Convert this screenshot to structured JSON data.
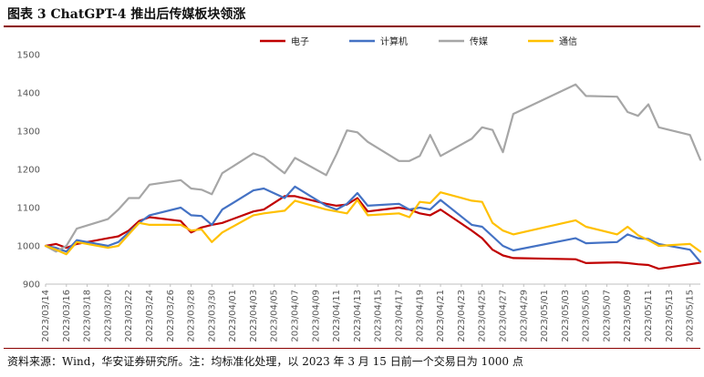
{
  "figure": {
    "title": "图表 3 ChatGPT-4 推出后传媒板块领涨",
    "source": "资料来源：Wind，华安证券研究所。注：均标准化处理，以 2023 年 3 月 15 日前一个交易日为 1000 点"
  },
  "chart_data": {
    "type": "line",
    "title": "",
    "xlabel": "",
    "ylabel": "",
    "ylim": [
      900,
      1500
    ],
    "yticks": [
      900,
      1000,
      1100,
      1200,
      1300,
      1400,
      1500
    ],
    "grid": false,
    "legend": "top",
    "x_tick_labels": [
      "2023/03/14",
      "2023/03/16",
      "2023/03/18",
      "2023/03/20",
      "2023/03/22",
      "2023/03/24",
      "2023/03/26",
      "2023/03/28",
      "2023/03/30",
      "2023/04/01",
      "2023/04/03",
      "2023/04/05",
      "2023/04/07",
      "2023/04/09",
      "2023/04/11",
      "2023/04/13",
      "2023/04/15",
      "2023/04/17",
      "2023/04/19",
      "2023/04/21",
      "2023/04/23",
      "2023/04/25",
      "2023/04/27",
      "2023/04/29",
      "2023/05/01",
      "2023/05/03",
      "2023/05/05",
      "2023/05/07",
      "2023/05/09",
      "2023/05/11",
      "2023/05/13",
      "2023/05/15"
    ],
    "x": [
      "2023/03/14",
      "2023/03/15",
      "2023/03/16",
      "2023/03/17",
      "2023/03/20",
      "2023/03/21",
      "2023/03/22",
      "2023/03/23",
      "2023/03/24",
      "2023/03/27",
      "2023/03/28",
      "2023/03/29",
      "2023/03/30",
      "2023/03/31",
      "2023/04/03",
      "2023/04/04",
      "2023/04/06",
      "2023/04/07",
      "2023/04/10",
      "2023/04/11",
      "2023/04/12",
      "2023/04/13",
      "2023/04/14",
      "2023/04/17",
      "2023/04/18",
      "2023/04/19",
      "2023/04/20",
      "2023/04/21",
      "2023/04/24",
      "2023/04/25",
      "2023/04/26",
      "2023/04/27",
      "2023/04/28",
      "2023/05/04",
      "2023/05/05",
      "2023/05/08",
      "2023/05/09",
      "2023/05/10",
      "2023/05/11",
      "2023/05/12",
      "2023/05/15",
      "2023/05/16"
    ],
    "series": [
      {
        "name": "电子",
        "color": "#c00000",
        "values": [
          1000,
          1005,
          995,
          1005,
          1020,
          1025,
          1040,
          1065,
          1075,
          1065,
          1035,
          1048,
          1055,
          1060,
          1090,
          1095,
          1130,
          1130,
          1110,
          1105,
          1108,
          1125,
          1090,
          1100,
          1095,
          1085,
          1080,
          1095,
          1040,
          1020,
          990,
          975,
          968,
          965,
          955,
          957,
          955,
          952,
          950,
          940,
          952,
          956
        ]
      },
      {
        "name": "计算机",
        "color": "#4472c4",
        "values": [
          1000,
          995,
          985,
          1015,
          1000,
          1010,
          1035,
          1060,
          1080,
          1100,
          1080,
          1078,
          1055,
          1095,
          1145,
          1150,
          1125,
          1155,
          1105,
          1095,
          1110,
          1138,
          1105,
          1110,
          1095,
          1100,
          1095,
          1120,
          1055,
          1050,
          1025,
          1000,
          988,
          1020,
          1007,
          1010,
          1030,
          1020,
          1018,
          1005,
          990,
          958
        ]
      },
      {
        "name": "传媒",
        "color": "#a6a6a6",
        "values": [
          1000,
          985,
          1000,
          1045,
          1070,
          1095,
          1125,
          1125,
          1160,
          1172,
          1150,
          1147,
          1135,
          1190,
          1242,
          1232,
          1190,
          1230,
          1185,
          1240,
          1302,
          1297,
          1272,
          1222,
          1222,
          1235,
          1290,
          1235,
          1280,
          1310,
          1303,
          1245,
          1345,
          1422,
          1392,
          1390,
          1350,
          1340,
          1370,
          1310,
          1290,
          1225
        ]
      },
      {
        "name": "通信",
        "color": "#ffc000",
        "values": [
          1000,
          990,
          978,
          1010,
          995,
          1000,
          1030,
          1060,
          1055,
          1055,
          1040,
          1043,
          1010,
          1035,
          1080,
          1085,
          1092,
          1118,
          1095,
          1090,
          1085,
          1120,
          1080,
          1085,
          1075,
          1115,
          1112,
          1140,
          1118,
          1115,
          1060,
          1040,
          1030,
          1067,
          1050,
          1030,
          1050,
          1028,
          1015,
          1000,
          1005,
          985
        ]
      }
    ]
  }
}
